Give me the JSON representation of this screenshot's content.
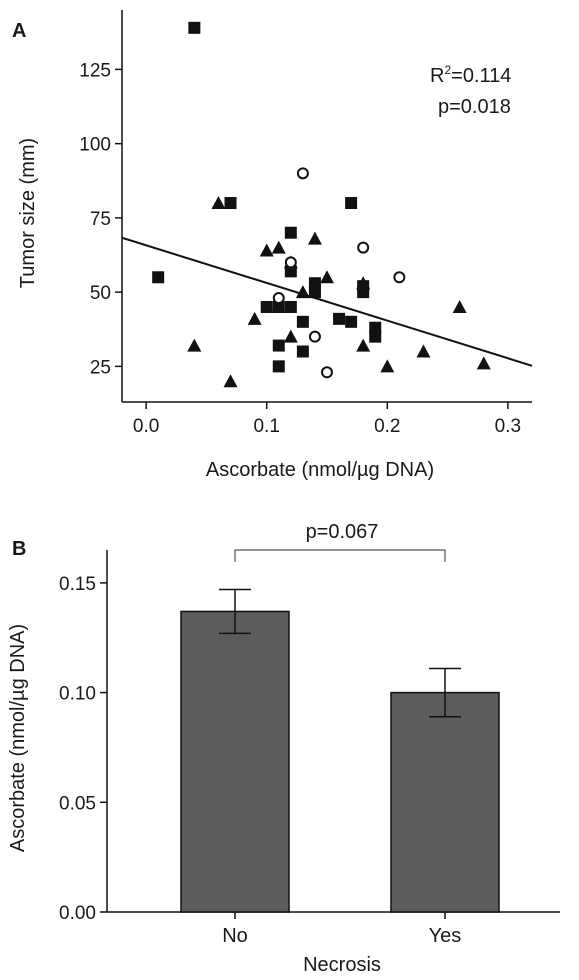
{
  "panels": {
    "a": {
      "letter": "A"
    },
    "b": {
      "letter": "B"
    }
  },
  "chart_data": [
    {
      "type": "scatter",
      "panel": "A",
      "xlabel": "Ascorbate (nmol/µg DNA)",
      "ylabel": "Tumor size (mm)",
      "xlim": [
        -0.02,
        0.32
      ],
      "ylim": [
        13,
        145
      ],
      "xticks": [
        "0.0",
        "0.1",
        "0.2",
        "0.3"
      ],
      "xtick_values": [
        0.0,
        0.1,
        0.2,
        0.3
      ],
      "yticks": [
        "25",
        "50",
        "75",
        "100",
        "125"
      ],
      "ytick_values": [
        25,
        50,
        75,
        100,
        125
      ],
      "annotations": {
        "r2_prefix": "R",
        "r2_sup": "2",
        "r2_value": "=0.114",
        "p_value": "p=0.018"
      },
      "fit_line": {
        "x": [
          -0.02,
          0.32
        ],
        "y": [
          68.3,
          25.2
        ]
      },
      "series": [
        {
          "marker": "square",
          "points": [
            [
              0.04,
              139
            ],
            [
              0.07,
              80
            ],
            [
              0.01,
              55
            ],
            [
              0.12,
              70
            ],
            [
              0.17,
              80
            ],
            [
              0.12,
              57
            ],
            [
              0.14,
              53
            ],
            [
              0.14,
              50
            ],
            [
              0.18,
              52
            ],
            [
              0.18,
              50
            ],
            [
              0.1,
              45
            ],
            [
              0.11,
              45
            ],
            [
              0.12,
              45
            ],
            [
              0.11,
              32
            ],
            [
              0.13,
              40
            ],
            [
              0.13,
              30
            ],
            [
              0.11,
              25
            ],
            [
              0.16,
              41
            ],
            [
              0.17,
              40
            ],
            [
              0.19,
              38
            ],
            [
              0.19,
              35
            ]
          ]
        },
        {
          "marker": "triangle",
          "points": [
            [
              0.06,
              80
            ],
            [
              0.1,
              64
            ],
            [
              0.11,
              65
            ],
            [
              0.12,
              60
            ],
            [
              0.14,
              68
            ],
            [
              0.15,
              55
            ],
            [
              0.13,
              50
            ],
            [
              0.09,
              41
            ],
            [
              0.04,
              32
            ],
            [
              0.07,
              20
            ],
            [
              0.11,
              45
            ],
            [
              0.12,
              35
            ],
            [
              0.18,
              53
            ],
            [
              0.18,
              32
            ],
            [
              0.2,
              25
            ],
            [
              0.23,
              30
            ],
            [
              0.26,
              45
            ],
            [
              0.28,
              26
            ]
          ]
        },
        {
          "marker": "circle",
          "points": [
            [
              0.13,
              90
            ],
            [
              0.18,
              65
            ],
            [
              0.12,
              60
            ],
            [
              0.21,
              55
            ],
            [
              0.11,
              48
            ],
            [
              0.14,
              35
            ],
            [
              0.15,
              23
            ]
          ]
        }
      ]
    },
    {
      "type": "bar",
      "panel": "B",
      "categories": [
        "No",
        "Yes"
      ],
      "values": [
        0.137,
        0.1
      ],
      "errors": [
        0.01,
        0.011
      ],
      "bar_color": "#5c5c5c",
      "xlabel": "Necrosis",
      "ylabel": "Ascorbate (nmol/µg DNA)",
      "ylim": [
        0.0,
        0.165
      ],
      "yticks": [
        "0.00",
        "0.05",
        "0.10",
        "0.15"
      ],
      "ytick_values": [
        0.0,
        0.05,
        0.1,
        0.15
      ],
      "significance": "p=0.067"
    }
  ]
}
